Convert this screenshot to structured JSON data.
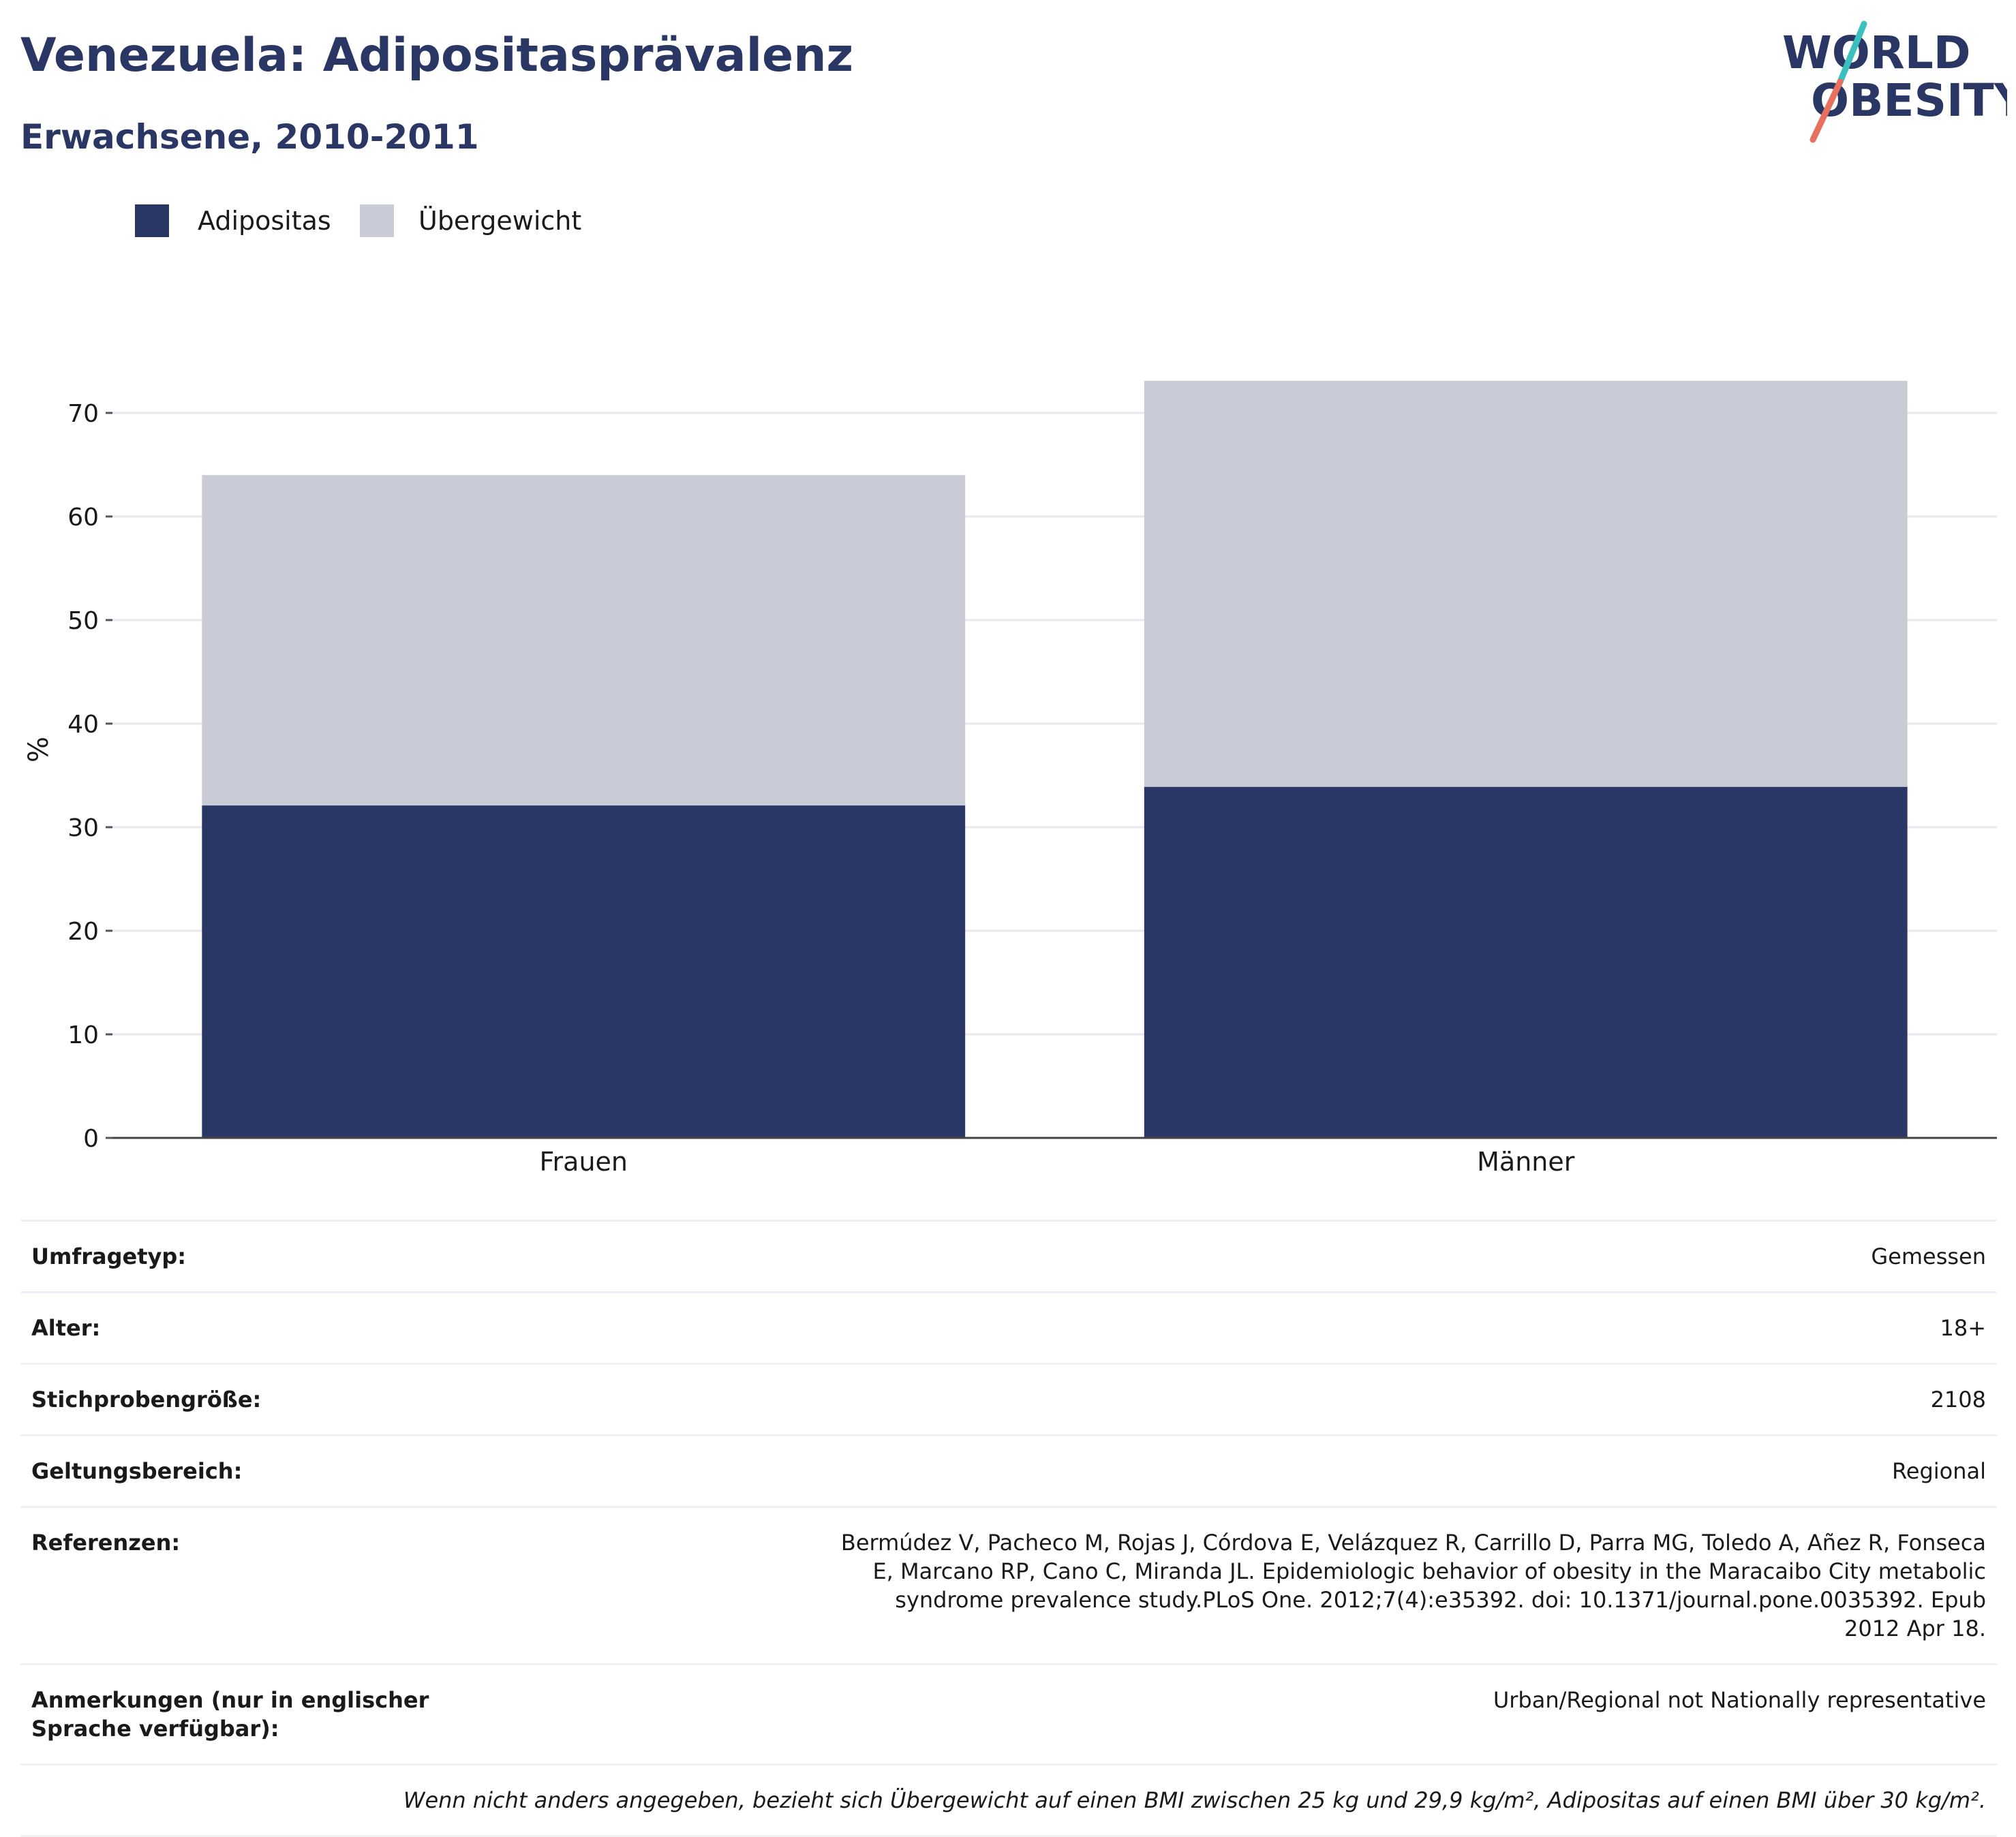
{
  "header": {
    "title": "Venezuela: Adipositasprävalenz",
    "subtitle": "Erwachsene, 2010-2011"
  },
  "logo": {
    "line1": "WORLD",
    "line2": "OBESITY",
    "colors": {
      "text": "#2a3765",
      "slash_top": "#3cbfbf",
      "slash_bottom": "#e8705f"
    }
  },
  "legend": [
    {
      "label": "Adipositas",
      "color": "#2a3765"
    },
    {
      "label": "Übergewicht",
      "color": "#c9cbd6"
    }
  ],
  "chart_data": {
    "type": "bar",
    "stacked": true,
    "categories": [
      "Frauen",
      "Männer"
    ],
    "series": [
      {
        "name": "Adipositas",
        "color": "#2a3765",
        "values": [
          32.1,
          33.9
        ]
      },
      {
        "name": "Übergewicht",
        "color": "#c9cbd6",
        "values": [
          31.9,
          39.2
        ]
      }
    ],
    "ylabel": "%",
    "ylim": [
      0,
      75
    ],
    "yticks": [
      0,
      10,
      20,
      30,
      40,
      50,
      60,
      70
    ],
    "grid": true,
    "legend_position": "top-left"
  },
  "info": {
    "rows": [
      {
        "key": "Umfragetyp:",
        "value": "Gemessen"
      },
      {
        "key": "Alter:",
        "value": "18+"
      },
      {
        "key": "Stichprobengröße:",
        "value": "2108"
      },
      {
        "key": "Geltungsbereich:",
        "value": "Regional"
      },
      {
        "key": "Referenzen:",
        "value": "Bermúdez V, Pacheco M, Rojas J, Córdova E, Velázquez R, Carrillo D, Parra MG, Toledo A, Añez R, Fonseca E, Marcano RP, Cano C, Miranda JL. Epidemiologic behavior of obesity in the Maracaibo City metabolic syndrome prevalence study.PLoS One. 2012;7(4):e35392. doi: 10.1371/journal.pone.0035392. Epub 2012 Apr 18."
      },
      {
        "key": "Anmerkungen (nur in englischer Sprache verfügbar):",
        "value": "Urban/Regional not Nationally representative"
      }
    ],
    "note": "Wenn nicht anders angegeben, bezieht sich Übergewicht auf einen BMI zwischen 25 kg und 29,9 kg/m², Adipositas auf einen BMI über 30 kg/m²."
  }
}
